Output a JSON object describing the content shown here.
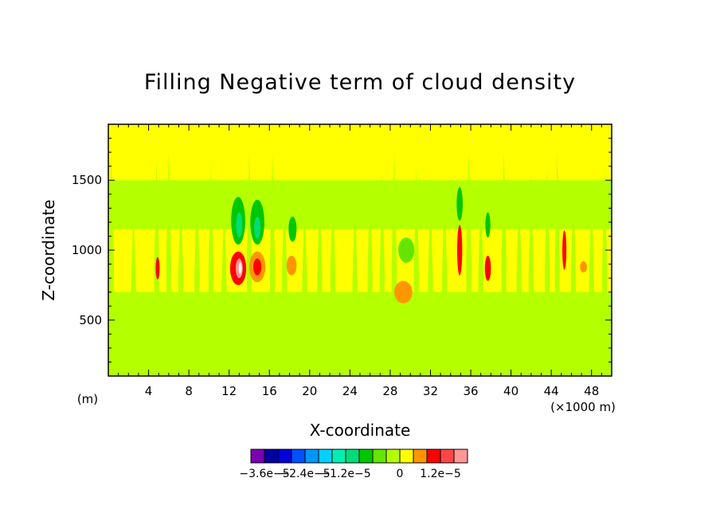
{
  "chart_data": {
    "type": "heatmap",
    "title": "Filling Negative term of cloud density",
    "xlabel": "X-coordinate",
    "ylabel": "Z-coordinate",
    "x_unit_left": "(m)",
    "x_unit_right": "(×1000 m)",
    "xlim": [
      0,
      50
    ],
    "ylim": [
      100,
      1900
    ],
    "x_ticks": [
      "4",
      "8",
      "12",
      "16",
      "20",
      "24",
      "28",
      "32",
      "36",
      "40",
      "44",
      "48"
    ],
    "x_tick_values": [
      4,
      8,
      12,
      16,
      20,
      24,
      28,
      32,
      36,
      40,
      44,
      48
    ],
    "y_ticks": [
      "500",
      "1000",
      "1500"
    ],
    "y_tick_values": [
      500,
      1000,
      1500
    ],
    "background_level_color": "#ffff00",
    "colorbar": {
      "colors": [
        "#7a00b4",
        "#0000a0",
        "#0000dc",
        "#0050ff",
        "#0096ff",
        "#00d2ff",
        "#00f0b4",
        "#00dc78",
        "#00c800",
        "#64e600",
        "#b4ff00",
        "#ffff00",
        "#ff9600",
        "#ff0000",
        "#ff4646",
        "#ff9696"
      ],
      "labels": [
        "−3.6e−5",
        "−2.4e−5",
        "−1.2e−5",
        "0",
        "1.2e−5"
      ]
    },
    "bands": [
      {
        "name": "light-green-upper",
        "color": "#b4ff00",
        "z": [
          1150,
          1500
        ],
        "x": [
          0,
          50
        ]
      },
      {
        "name": "light-green-lower",
        "color": "#b4ff00",
        "z": [
          100,
          700
        ],
        "x": [
          0,
          50
        ]
      }
    ],
    "features": [
      {
        "name": "green-blob-13",
        "color": "#00c800",
        "x": 12.9,
        "z": 1210,
        "rx": 0.7,
        "rz": 170
      },
      {
        "name": "green-core-13",
        "color": "#00dc78",
        "x": 13.0,
        "z": 1180,
        "rx": 0.3,
        "rz": 90
      },
      {
        "name": "green-blob-15",
        "color": "#00c800",
        "x": 14.8,
        "z": 1200,
        "rx": 0.7,
        "rz": 160
      },
      {
        "name": "green-core-15",
        "color": "#00dc78",
        "x": 14.8,
        "z": 1160,
        "rx": 0.3,
        "rz": 80
      },
      {
        "name": "green-blob-18",
        "color": "#00c800",
        "x": 18.3,
        "z": 1150,
        "rx": 0.4,
        "rz": 90
      },
      {
        "name": "red-blob-13",
        "color": "#ff0000",
        "x": 12.9,
        "z": 870,
        "rx": 0.8,
        "rz": 120
      },
      {
        "name": "pink-core-13",
        "color": "#ff9696",
        "x": 13.0,
        "z": 870,
        "rx": 0.35,
        "rz": 70
      },
      {
        "name": "white-core-13",
        "color": "#ffffff",
        "x": 13.1,
        "z": 870,
        "rx": 0.15,
        "rz": 40
      },
      {
        "name": "orange-blob-15",
        "color": "#ff9600",
        "x": 14.8,
        "z": 880,
        "rx": 0.8,
        "rz": 110
      },
      {
        "name": "red-core-15",
        "color": "#ff0000",
        "x": 14.8,
        "z": 880,
        "rx": 0.4,
        "rz": 60
      },
      {
        "name": "orange-blob-18",
        "color": "#ff9600",
        "x": 18.2,
        "z": 890,
        "rx": 0.5,
        "rz": 70
      },
      {
        "name": "orange-blob-29",
        "color": "#ff9600",
        "x": 29.3,
        "z": 700,
        "rx": 0.9,
        "rz": 80
      },
      {
        "name": "green-blob-29",
        "color": "#64e600",
        "x": 29.6,
        "z": 1000,
        "rx": 0.8,
        "rz": 90
      },
      {
        "name": "red-blob-35",
        "color": "#ff0000",
        "x": 34.9,
        "z": 1000,
        "rx": 0.25,
        "rz": 180
      },
      {
        "name": "green-blob-35",
        "color": "#00c800",
        "x": 34.9,
        "z": 1330,
        "rx": 0.3,
        "rz": 120
      },
      {
        "name": "red-blob-38",
        "color": "#ff0000",
        "x": 37.7,
        "z": 870,
        "rx": 0.3,
        "rz": 90
      },
      {
        "name": "green-blob-38",
        "color": "#00c800",
        "x": 37.7,
        "z": 1180,
        "rx": 0.25,
        "rz": 90
      },
      {
        "name": "red-blob-45",
        "color": "#ff0000",
        "x": 45.3,
        "z": 1000,
        "rx": 0.2,
        "rz": 140
      },
      {
        "name": "orange-blob-47",
        "color": "#ff9600",
        "x": 47.2,
        "z": 880,
        "rx": 0.35,
        "rz": 40
      },
      {
        "name": "red-blob-5",
        "color": "#ff0000",
        "x": 4.9,
        "z": 870,
        "rx": 0.2,
        "rz": 80
      }
    ],
    "spikes": [
      {
        "x": 0.3,
        "z0": 100,
        "z1": 1700
      },
      {
        "x": 2.5,
        "z0": 100,
        "z1": 1300
      },
      {
        "x": 4.8,
        "z0": 100,
        "z1": 1650
      },
      {
        "x": 6.0,
        "z0": 100,
        "z1": 1700
      },
      {
        "x": 7.2,
        "z0": 200,
        "z1": 1400
      },
      {
        "x": 8.8,
        "z0": 150,
        "z1": 1500
      },
      {
        "x": 10.2,
        "z0": 100,
        "z1": 1600
      },
      {
        "x": 11.5,
        "z0": 100,
        "z1": 1350
      },
      {
        "x": 14.0,
        "z0": 100,
        "z1": 1700
      },
      {
        "x": 16.3,
        "z0": 100,
        "z1": 1700
      },
      {
        "x": 17.5,
        "z0": 200,
        "z1": 1450
      },
      {
        "x": 19.5,
        "z0": 100,
        "z1": 1400
      },
      {
        "x": 21.0,
        "z0": 100,
        "z1": 1500
      },
      {
        "x": 22.3,
        "z0": 200,
        "z1": 1450
      },
      {
        "x": 24.5,
        "z0": 100,
        "z1": 1400
      },
      {
        "x": 26.0,
        "z0": 150,
        "z1": 1500
      },
      {
        "x": 27.2,
        "z0": 100,
        "z1": 1550
      },
      {
        "x": 28.4,
        "z0": 100,
        "z1": 1700
      },
      {
        "x": 30.6,
        "z0": 100,
        "z1": 1600
      },
      {
        "x": 32.0,
        "z0": 150,
        "z1": 1400
      },
      {
        "x": 33.4,
        "z0": 100,
        "z1": 1500
      },
      {
        "x": 35.8,
        "z0": 100,
        "z1": 1700
      },
      {
        "x": 37.0,
        "z0": 100,
        "z1": 1500
      },
      {
        "x": 39.3,
        "z0": 100,
        "z1": 1700
      },
      {
        "x": 40.8,
        "z0": 150,
        "z1": 1450
      },
      {
        "x": 42.0,
        "z0": 100,
        "z1": 1550
      },
      {
        "x": 43.6,
        "z0": 100,
        "z1": 1600
      },
      {
        "x": 44.6,
        "z0": 100,
        "z1": 1700
      },
      {
        "x": 46.2,
        "z0": 100,
        "z1": 1500
      },
      {
        "x": 48.0,
        "z0": 100,
        "z1": 1450
      },
      {
        "x": 49.3,
        "z0": 100,
        "z1": 1600
      }
    ]
  }
}
